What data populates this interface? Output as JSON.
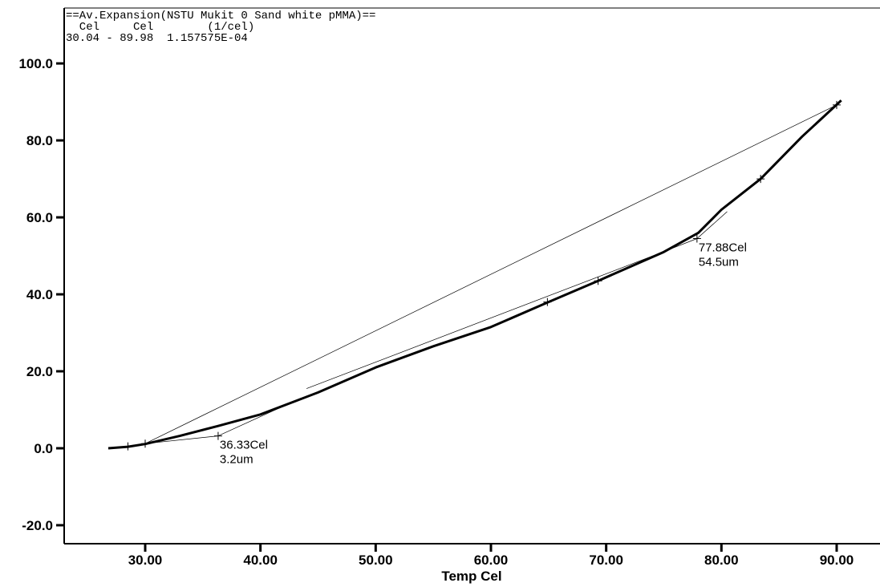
{
  "chart_data": {
    "type": "line",
    "header": [
      "==Av.Expansion(NSTU Mukit 0 Sand white pMMA)==",
      "  Cel     Cel        (1/cel)",
      "30.04 - 89.98  1.157575E-04"
    ],
    "x_label": "Temp Cel",
    "xlim": [
      22.97,
      93.76
    ],
    "ylim": [
      -24.8,
      114.4
    ],
    "xticks": [
      {
        "value": 30,
        "label": "30.00"
      },
      {
        "value": 40,
        "label": "40.00"
      },
      {
        "value": 50,
        "label": "50.00"
      },
      {
        "value": 60,
        "label": "60.00"
      },
      {
        "value": 70,
        "label": "70.00"
      },
      {
        "value": 80,
        "label": "80.00"
      },
      {
        "value": 90,
        "label": "90.00"
      }
    ],
    "yticks": [
      {
        "value": -20,
        "label": "-20.0"
      },
      {
        "value": 0,
        "label": "0.0"
      },
      {
        "value": 20,
        "label": "20.0"
      },
      {
        "value": 40,
        "label": "40.0"
      },
      {
        "value": 60,
        "label": "60.0"
      },
      {
        "value": 80,
        "label": "80.0"
      },
      {
        "value": 100,
        "label": "100.0"
      }
    ],
    "series": [
      {
        "color": "#000000",
        "width": 3,
        "x": [
          26.8,
          28.5,
          30,
          33,
          36.33,
          40,
          45,
          50,
          55,
          60,
          65,
          69.3,
          75,
          78,
          80,
          83.4,
          87,
          90.4
        ],
        "values": [
          0,
          0.4,
          1.1,
          3.2,
          5.8,
          8.8,
          14.5,
          21,
          26.5,
          31.5,
          38,
          43.5,
          51,
          56,
          62,
          70,
          81,
          90.4
        ]
      },
      {
        "color": "#000000",
        "width": 0.7,
        "x": [
          30,
          90
        ],
        "values": [
          1.2,
          89.2
        ]
      },
      {
        "color": "#000000",
        "width": 0.7,
        "x": [
          30,
          36.33,
          43.5
        ],
        "values": [
          1.2,
          3.2,
          13
        ]
      },
      {
        "color": "#000000",
        "width": 0.7,
        "x": [
          44,
          74.5,
          77.88,
          80.5
        ],
        "values": [
          15.5,
          50.5,
          54.5,
          61.5
        ]
      }
    ],
    "markers": {
      "x": [
        28.5,
        30,
        64.9,
        69.3,
        83.4,
        90
      ],
      "values": [
        0.5,
        1.2,
        38,
        43.5,
        70,
        89.2
      ]
    },
    "annotations": [
      {
        "x": 36.33,
        "y": 3.2,
        "lines": [
          "36.33Cel",
          "3.2um"
        ]
      },
      {
        "x": 77.88,
        "y": 54.5,
        "lines": [
          "77.88Cel",
          "54.5um"
        ]
      }
    ]
  }
}
